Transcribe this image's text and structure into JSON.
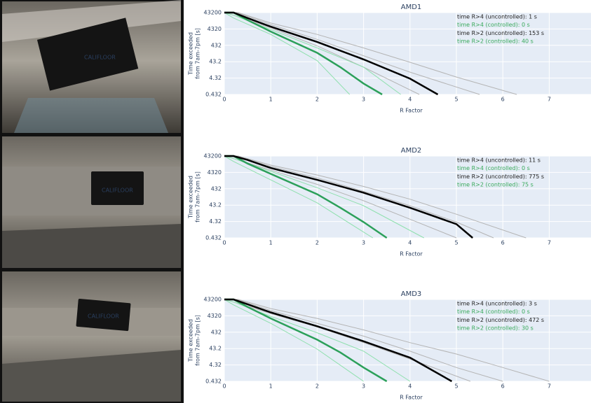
{
  "photos": [
    {
      "label": "CALIFLOOR"
    },
    {
      "label": "CALIFLOOR"
    },
    {
      "label": "CALIFLOOR"
    }
  ],
  "chart_data": [
    {
      "type": "line",
      "title": "AMD1",
      "xlabel": "R Factor",
      "ylabel": [
        "Time exceeded",
        "from 7am-7pm [s]"
      ],
      "xlim": [
        0,
        7.9
      ],
      "xticks": [
        0,
        1,
        2,
        3,
        4,
        5,
        6,
        7
      ],
      "ylim": [
        0.432,
        43200
      ],
      "yticks": [
        43200,
        4320,
        432,
        43.2,
        4.32,
        0.432
      ],
      "log_y": true,
      "grid": true,
      "background": "#e5ecf6",
      "annotations": [
        {
          "text": "time R>4 (uncontrolled): 1 s",
          "color": "#222222"
        },
        {
          "text": "time R>4 (controlled): 0 s",
          "color": "#3aaa5c"
        },
        {
          "text": "time R>2 (uncontrolled): 153 s",
          "color": "#222222"
        },
        {
          "text": "time R>2 (controlled): 40 s",
          "color": "#3aaa5c"
        }
      ],
      "series": [
        {
          "color": "#b4b4b4",
          "line_width": 1,
          "x": [
            0,
            0.3,
            1,
            2,
            3,
            4,
            5,
            6.3
          ],
          "values": [
            43200,
            43200,
            10000,
            2000,
            300,
            40,
            5,
            0.432
          ]
        },
        {
          "color": "#b4b4b4",
          "line_width": 1,
          "x": [
            0,
            0.3,
            1,
            2,
            3,
            4,
            5.5
          ],
          "values": [
            43200,
            40000,
            8000,
            1000,
            100,
            10,
            0.432
          ]
        },
        {
          "color": "#b4b4b4",
          "line_width": 1,
          "x": [
            0,
            0.2,
            1,
            2,
            3,
            4.2
          ],
          "values": [
            43200,
            30000,
            5000,
            400,
            20,
            0.432
          ]
        },
        {
          "color": "#8fe0ae",
          "line_width": 1,
          "x": [
            0,
            0.2,
            1,
            2,
            3,
            3.8
          ],
          "values": [
            43200,
            30000,
            4000,
            300,
            20,
            0.432
          ]
        },
        {
          "color": "#8fe0ae",
          "line_width": 1,
          "x": [
            0,
            0.2,
            1,
            2,
            2.7
          ],
          "values": [
            43200,
            20000,
            2000,
            50,
            0.432
          ]
        },
        {
          "color": "#2ca05a",
          "line_width": 2.5,
          "x": [
            0,
            0.2,
            0.5,
            1,
            2,
            2.5,
            3,
            3.4
          ],
          "values": [
            43200,
            43200,
            15000,
            3000,
            150,
            20,
            2,
            0.432
          ]
        },
        {
          "color": "#000000",
          "line_width": 2.5,
          "x": [
            0,
            0.2,
            0.5,
            1,
            2,
            3,
            4,
            4.6
          ],
          "values": [
            43200,
            43200,
            20000,
            6000,
            700,
            60,
            4,
            0.432
          ]
        }
      ]
    },
    {
      "type": "line",
      "title": "AMD2",
      "xlabel": "R Factor",
      "ylabel": [
        "Time exceeded",
        "from 7am-7pm [s]"
      ],
      "xlim": [
        0,
        7.9
      ],
      "xticks": [
        0,
        1,
        2,
        3,
        4,
        5,
        6,
        7
      ],
      "ylim": [
        0.432,
        43200
      ],
      "yticks": [
        43200,
        4320,
        432,
        43.2,
        4.32,
        0.432
      ],
      "log_y": true,
      "grid": true,
      "background": "#e5ecf6",
      "annotations": [
        {
          "text": "time R>4 (uncontrolled): 11 s",
          "color": "#222222"
        },
        {
          "text": "time R>4 (controlled): 0 s",
          "color": "#3aaa5c"
        },
        {
          "text": "time R>2 (uncontrolled): 775 s",
          "color": "#222222"
        },
        {
          "text": "time R>2 (controlled): 75 s",
          "color": "#3aaa5c"
        }
      ],
      "series": [
        {
          "color": "#b4b4b4",
          "line_width": 1,
          "x": [
            0,
            0.3,
            1,
            2,
            3,
            4,
            5,
            6.5
          ],
          "values": [
            43200,
            43200,
            12000,
            3000,
            600,
            100,
            12,
            0.432
          ]
        },
        {
          "color": "#b4b4b4",
          "line_width": 1,
          "x": [
            0,
            0.3,
            1,
            2,
            3,
            4,
            5,
            5.8
          ],
          "values": [
            43200,
            40000,
            10000,
            2000,
            300,
            40,
            4,
            0.432
          ]
        },
        {
          "color": "#b4b4b4",
          "line_width": 1,
          "x": [
            0,
            0.2,
            1,
            2,
            3,
            4,
            5
          ],
          "values": [
            43200,
            30000,
            6000,
            800,
            80,
            6,
            0.432
          ]
        },
        {
          "color": "#8fe0ae",
          "line_width": 1,
          "x": [
            0,
            0.2,
            1,
            2,
            3,
            4.3
          ],
          "values": [
            43200,
            30000,
            5000,
            500,
            40,
            0.432
          ]
        },
        {
          "color": "#8fe0ae",
          "line_width": 1,
          "x": [
            0,
            0.2,
            1,
            2,
            3.2
          ],
          "values": [
            43200,
            20000,
            1500,
            60,
            0.432
          ]
        },
        {
          "color": "#2ca05a",
          "line_width": 2.5,
          "x": [
            0,
            0.2,
            0.5,
            1,
            2,
            2.5,
            3,
            3.5
          ],
          "values": [
            43200,
            43200,
            15000,
            3500,
            200,
            30,
            4,
            0.432
          ]
        },
        {
          "color": "#000000",
          "line_width": 2.5,
          "x": [
            0,
            0.2,
            0.5,
            1,
            2,
            3,
            4,
            5,
            5.35
          ],
          "values": [
            43200,
            43200,
            25000,
            8000,
            1500,
            250,
            30,
            3,
            0.432
          ]
        }
      ]
    },
    {
      "type": "line",
      "title": "AMD3",
      "xlabel": "R Factor",
      "ylabel": [
        "Time exceeded",
        "from 7am-7pm [s]"
      ],
      "xlim": [
        0,
        7.9
      ],
      "xticks": [
        0,
        1,
        2,
        3,
        4,
        5,
        6,
        7
      ],
      "ylim": [
        0.432,
        43200
      ],
      "yticks": [
        43200,
        4320,
        432,
        43.2,
        4.32,
        0.432
      ],
      "log_y": true,
      "grid": true,
      "background": "#e5ecf6",
      "annotations": [
        {
          "text": "time R>4 (uncontrolled): 3 s",
          "color": "#222222"
        },
        {
          "text": "time R>4 (controlled): 0 s",
          "color": "#3aaa5c"
        },
        {
          "text": "time R>2 (uncontrolled): 472 s",
          "color": "#222222"
        },
        {
          "text": "time R>2 (controlled): 30 s",
          "color": "#3aaa5c"
        }
      ],
      "series": [
        {
          "color": "#b4b4b4",
          "line_width": 1,
          "x": [
            0,
            0.3,
            1,
            2,
            3,
            4,
            5,
            6,
            7
          ],
          "values": [
            43200,
            43200,
            12000,
            3000,
            600,
            100,
            20,
            3,
            0.432
          ]
        },
        {
          "color": "#b4b4b4",
          "line_width": 1,
          "x": [
            0,
            0.3,
            1,
            2,
            3,
            4,
            5,
            6
          ],
          "values": [
            43200,
            40000,
            9000,
            1500,
            250,
            30,
            3,
            0.432
          ]
        },
        {
          "color": "#b4b4b4",
          "line_width": 1,
          "x": [
            0,
            0.2,
            1,
            2,
            3,
            4,
            5.3
          ],
          "values": [
            43200,
            30000,
            6000,
            900,
            100,
            10,
            0.432
          ]
        },
        {
          "color": "#8fe0ae",
          "line_width": 1,
          "x": [
            0,
            0.2,
            1,
            2,
            3,
            4
          ],
          "values": [
            43200,
            30000,
            4000,
            400,
            30,
            0.432
          ]
        },
        {
          "color": "#8fe0ae",
          "line_width": 1,
          "x": [
            0,
            0.2,
            1,
            2,
            3
          ],
          "values": [
            43200,
            20000,
            1500,
            40,
            0.432
          ]
        },
        {
          "color": "#2ca05a",
          "line_width": 2.5,
          "x": [
            0,
            0.2,
            0.5,
            1,
            2,
            2.5,
            3,
            3.5
          ],
          "values": [
            43200,
            43200,
            15000,
            3000,
            150,
            25,
            3,
            0.432
          ]
        },
        {
          "color": "#000000",
          "line_width": 2.5,
          "x": [
            0,
            0.2,
            0.5,
            1,
            2,
            3,
            4,
            4.9
          ],
          "values": [
            43200,
            43200,
            22000,
            7000,
            1000,
            120,
            12,
            0.432
          ]
        }
      ]
    }
  ]
}
